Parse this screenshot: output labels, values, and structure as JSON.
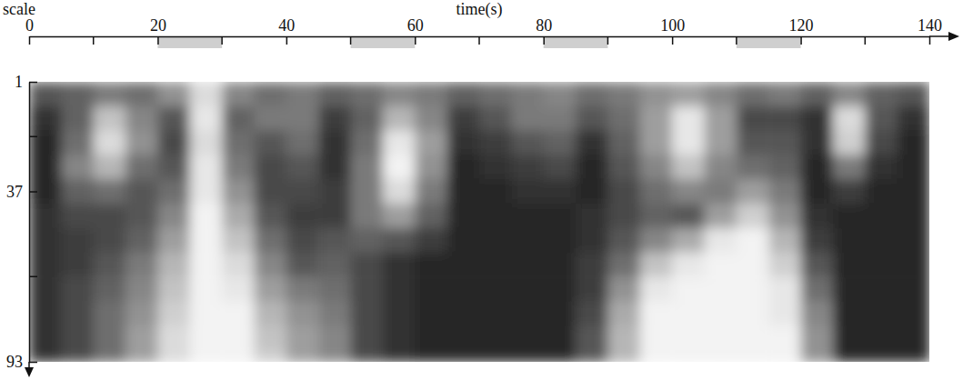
{
  "chart_data": {
    "type": "heatmap",
    "x_label": "time(s)",
    "y_label": "scale",
    "xlim": [
      0,
      140
    ],
    "xticks": [
      0,
      20,
      40,
      60,
      80,
      100,
      120,
      140
    ],
    "x_minor_ticks": [
      10,
      30,
      50,
      70,
      90,
      110,
      130
    ],
    "ylim": [
      1,
      93
    ],
    "yticks": [
      1,
      37,
      93
    ],
    "y_minor_ticks": [
      19,
      65
    ],
    "intervals": [
      [
        20,
        30
      ],
      [
        50,
        60
      ],
      [
        80,
        90
      ],
      [
        110,
        120
      ]
    ],
    "zlim": [
      0,
      1
    ],
    "x_edges": [
      0,
      5,
      10,
      15,
      20,
      25,
      30,
      35,
      40,
      45,
      50,
      55,
      60,
      65,
      70,
      75,
      80,
      85,
      90,
      95,
      100,
      105,
      110,
      115,
      120,
      125,
      130,
      135,
      140
    ],
    "y_edges": [
      1,
      9,
      17,
      25,
      33,
      41,
      49,
      57,
      65,
      73,
      81,
      89,
      93
    ],
    "cells": [
      [
        0.3,
        0.35,
        0.45,
        0.4,
        0.55,
        0.85,
        0.5,
        0.4,
        0.45,
        0.35,
        0.4,
        0.5,
        0.45,
        0.35,
        0.4,
        0.45,
        0.5,
        0.4,
        0.45,
        0.55,
        0.6,
        0.5,
        0.4,
        0.45,
        0.35,
        0.5,
        0.35,
        0.3
      ],
      [
        0.15,
        0.35,
        0.75,
        0.5,
        0.3,
        0.9,
        0.35,
        0.45,
        0.45,
        0.2,
        0.35,
        0.7,
        0.5,
        0.2,
        0.3,
        0.45,
        0.45,
        0.3,
        0.4,
        0.6,
        0.9,
        0.6,
        0.25,
        0.25,
        0.15,
        0.85,
        0.3,
        0.15
      ],
      [
        0.1,
        0.4,
        0.85,
        0.55,
        0.25,
        0.85,
        0.4,
        0.3,
        0.4,
        0.15,
        0.4,
        0.9,
        0.6,
        0.15,
        0.2,
        0.3,
        0.35,
        0.15,
        0.35,
        0.6,
        0.9,
        0.6,
        0.3,
        0.3,
        0.15,
        0.8,
        0.25,
        0.1
      ],
      [
        0.1,
        0.5,
        0.7,
        0.4,
        0.3,
        0.9,
        0.45,
        0.25,
        0.3,
        0.15,
        0.45,
        0.95,
        0.55,
        0.1,
        0.15,
        0.2,
        0.25,
        0.1,
        0.3,
        0.5,
        0.75,
        0.5,
        0.4,
        0.35,
        0.1,
        0.45,
        0.15,
        0.1
      ],
      [
        0.1,
        0.35,
        0.4,
        0.3,
        0.4,
        0.9,
        0.55,
        0.25,
        0.25,
        0.2,
        0.45,
        0.85,
        0.45,
        0.1,
        0.1,
        0.15,
        0.15,
        0.1,
        0.25,
        0.4,
        0.5,
        0.45,
        0.6,
        0.45,
        0.1,
        0.2,
        0.1,
        0.1
      ],
      [
        0.15,
        0.25,
        0.25,
        0.3,
        0.5,
        0.95,
        0.65,
        0.3,
        0.2,
        0.2,
        0.45,
        0.6,
        0.35,
        0.1,
        0.1,
        0.1,
        0.1,
        0.15,
        0.25,
        0.35,
        0.3,
        0.6,
        0.8,
        0.55,
        0.15,
        0.1,
        0.1,
        0.1
      ],
      [
        0.15,
        0.2,
        0.25,
        0.35,
        0.6,
        0.95,
        0.75,
        0.4,
        0.25,
        0.3,
        0.35,
        0.3,
        0.2,
        0.1,
        0.1,
        0.1,
        0.1,
        0.15,
        0.3,
        0.5,
        0.65,
        0.9,
        0.95,
        0.7,
        0.2,
        0.1,
        0.1,
        0.1
      ],
      [
        0.15,
        0.2,
        0.3,
        0.45,
        0.7,
        0.95,
        0.85,
        0.5,
        0.3,
        0.35,
        0.25,
        0.15,
        0.1,
        0.1,
        0.1,
        0.1,
        0.1,
        0.2,
        0.4,
        0.75,
        0.9,
        0.95,
        0.95,
        0.8,
        0.3,
        0.1,
        0.1,
        0.1
      ],
      [
        0.15,
        0.25,
        0.35,
        0.5,
        0.75,
        0.95,
        0.9,
        0.6,
        0.45,
        0.4,
        0.25,
        0.15,
        0.1,
        0.1,
        0.1,
        0.1,
        0.1,
        0.2,
        0.55,
        0.9,
        0.95,
        0.95,
        0.95,
        0.9,
        0.4,
        0.1,
        0.1,
        0.1
      ],
      [
        0.15,
        0.25,
        0.4,
        0.55,
        0.8,
        0.95,
        0.95,
        0.7,
        0.55,
        0.45,
        0.25,
        0.15,
        0.1,
        0.1,
        0.1,
        0.1,
        0.1,
        0.25,
        0.65,
        0.95,
        0.95,
        0.95,
        0.95,
        0.9,
        0.5,
        0.1,
        0.1,
        0.1
      ],
      [
        0.15,
        0.25,
        0.4,
        0.6,
        0.85,
        0.95,
        0.95,
        0.75,
        0.6,
        0.5,
        0.25,
        0.15,
        0.1,
        0.1,
        0.1,
        0.1,
        0.1,
        0.3,
        0.7,
        0.95,
        0.95,
        0.95,
        0.95,
        0.95,
        0.55,
        0.1,
        0.1,
        0.1
      ],
      [
        0.15,
        0.25,
        0.4,
        0.6,
        0.85,
        0.95,
        0.95,
        0.8,
        0.6,
        0.5,
        0.25,
        0.15,
        0.1,
        0.1,
        0.1,
        0.1,
        0.1,
        0.3,
        0.7,
        0.95,
        0.95,
        0.95,
        0.95,
        0.95,
        0.55,
        0.1,
        0.1,
        0.1
      ]
    ]
  }
}
